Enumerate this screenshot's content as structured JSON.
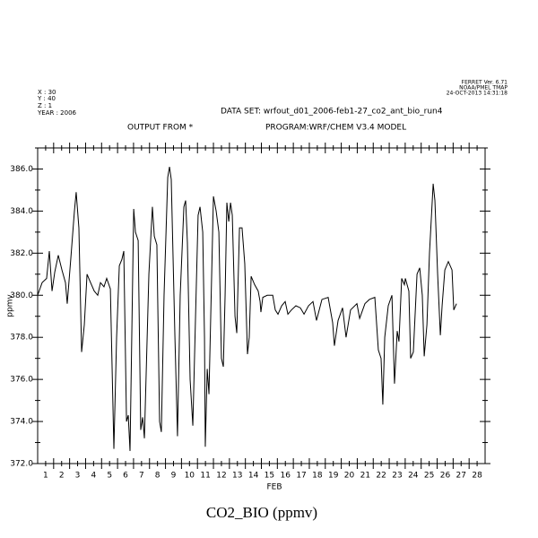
{
  "chart_data": {
    "type": "line",
    "title": "CO2_BIO (ppmv)",
    "software": "FERRET Ver. 6.71",
    "organization": "NOAA/PMEL TMAP",
    "timestamp": "24-OCT-2013 14:31:18",
    "header_left": [
      "X : 30",
      "Y : 40",
      "Z : 1",
      "YEAR : 2006"
    ],
    "dataset": "DATA SET: wrfout_d01_2006-feb1-27_co2_ant_bio_run4",
    "output_from": "OUTPUT FROM *",
    "program": "PROGRAM:WRF/CHEM V3.4 MODEL",
    "x_label": "FEB",
    "y_label": "ppmv",
    "color": "#000000",
    "xlim": [
      1,
      29
    ],
    "ylim": [
      372,
      387
    ],
    "xticks": [
      {
        "value": 1.5,
        "label": "1"
      },
      {
        "value": 2.5,
        "label": "2"
      },
      {
        "value": 3.5,
        "label": "3"
      },
      {
        "value": 4.5,
        "label": "4"
      },
      {
        "value": 5.5,
        "label": "5"
      },
      {
        "value": 6.5,
        "label": "6"
      },
      {
        "value": 7.5,
        "label": "7"
      },
      {
        "value": 8.5,
        "label": "8"
      },
      {
        "value": 9.5,
        "label": "9"
      },
      {
        "value": 10.5,
        "label": "10"
      },
      {
        "value": 11.5,
        "label": "11"
      },
      {
        "value": 12.5,
        "label": "12"
      },
      {
        "value": 13.5,
        "label": "13"
      },
      {
        "value": 14.5,
        "label": "14"
      },
      {
        "value": 15.5,
        "label": "15"
      },
      {
        "value": 16.5,
        "label": "16"
      },
      {
        "value": 17.5,
        "label": "17"
      },
      {
        "value": 18.5,
        "label": "18"
      },
      {
        "value": 19.5,
        "label": "19"
      },
      {
        "value": 20.5,
        "label": "20"
      },
      {
        "value": 21.5,
        "label": "21"
      },
      {
        "value": 22.5,
        "label": "22"
      },
      {
        "value": 23.5,
        "label": "23"
      },
      {
        "value": 24.5,
        "label": "24"
      },
      {
        "value": 25.5,
        "label": "25"
      },
      {
        "value": 26.5,
        "label": "26"
      },
      {
        "value": 27.5,
        "label": "27"
      },
      {
        "value": 28.5,
        "label": "28"
      }
    ],
    "xminorticks": [
      2,
      3,
      4,
      5,
      6,
      7,
      8,
      9,
      10,
      11,
      12,
      13,
      14,
      15,
      16,
      17,
      18,
      19,
      20,
      21,
      22,
      23,
      24,
      25,
      26,
      27,
      28
    ],
    "yticks": [
      {
        "value": 372,
        "label": "372.0"
      },
      {
        "value": 374,
        "label": "374.0"
      },
      {
        "value": 376,
        "label": "376.0"
      },
      {
        "value": 378,
        "label": "378.0"
      },
      {
        "value": 380,
        "label": "380.0"
      },
      {
        "value": 382,
        "label": "382.0"
      },
      {
        "value": 384,
        "label": "384.0"
      },
      {
        "value": 386,
        "label": "386.0"
      }
    ],
    "yminorticks": [
      373,
      375,
      377,
      379,
      381,
      383,
      385,
      387
    ],
    "x": [
      1.0,
      1.28,
      1.56,
      1.73,
      1.9,
      2.07,
      2.29,
      2.52,
      2.74,
      2.85,
      3.08,
      3.3,
      3.41,
      3.58,
      3.75,
      3.92,
      4.09,
      4.31,
      4.54,
      4.76,
      4.93,
      5.15,
      5.32,
      5.55,
      5.77,
      5.94,
      6.11,
      6.27,
      6.39,
      6.56,
      6.67,
      6.78,
      7.01,
      7.12,
      7.29,
      7.45,
      7.57,
      7.68,
      7.96,
      8.18,
      8.3,
      8.46,
      8.63,
      8.74,
      8.91,
      9.14,
      9.25,
      9.36,
      9.59,
      9.75,
      9.92,
      10.15,
      10.26,
      10.37,
      10.54,
      10.71,
      10.88,
      11.04,
      11.16,
      11.33,
      11.44,
      11.49,
      11.61,
      11.72,
      11.83,
      12.0,
      12.17,
      12.34,
      12.5,
      12.62,
      12.73,
      12.84,
      12.96,
      13.07,
      13.18,
      13.35,
      13.46,
      13.63,
      13.79,
      13.96,
      14.13,
      14.24,
      14.36,
      14.58,
      14.8,
      14.92,
      14.97,
      15.09,
      15.37,
      15.71,
      15.87,
      16.04,
      16.27,
      16.49,
      16.66,
      16.88,
      17.16,
      17.44,
      17.67,
      17.95,
      18.23,
      18.45,
      18.79,
      19.18,
      19.46,
      19.57,
      19.8,
      20.08,
      20.3,
      20.58,
      20.98,
      21.15,
      21.48,
      21.76,
      22.1,
      22.32,
      22.49,
      22.6,
      22.72,
      22.94,
      23.17,
      23.33,
      23.5,
      23.61,
      23.78,
      23.95,
      24.01,
      24.23,
      24.34,
      24.51,
      24.74,
      24.91,
      25.07,
      25.19,
      25.36,
      25.52,
      25.75,
      25.86,
      26.03,
      26.2,
      26.31,
      26.48,
      26.7,
      26.93,
      27.04,
      27.21
    ],
    "values": [
      380.0,
      380.6,
      380.8,
      382.1,
      380.2,
      381.1,
      381.9,
      381.2,
      380.6,
      379.6,
      381.8,
      384.0,
      384.9,
      383.2,
      377.3,
      378.6,
      381.0,
      380.6,
      380.2,
      380.0,
      380.6,
      380.4,
      380.8,
      380.3,
      372.7,
      378.0,
      381.4,
      381.7,
      382.1,
      374.0,
      374.3,
      372.6,
      384.1,
      383.0,
      382.6,
      373.6,
      374.2,
      373.2,
      381.0,
      384.2,
      382.8,
      382.4,
      374.0,
      373.5,
      380.0,
      385.6,
      386.1,
      385.5,
      378.0,
      373.3,
      380.0,
      384.2,
      384.5,
      382.5,
      376.0,
      373.8,
      379.0,
      383.8,
      384.2,
      383.0,
      378.0,
      372.8,
      376.5,
      375.3,
      379.0,
      384.7,
      384.0,
      383.0,
      377.0,
      376.6,
      380.0,
      384.4,
      383.5,
      384.4,
      383.8,
      379.0,
      378.2,
      383.2,
      383.2,
      381.5,
      377.2,
      378.0,
      380.9,
      380.5,
      380.2,
      379.7,
      379.2,
      379.9,
      380.0,
      380.0,
      379.3,
      379.1,
      379.5,
      379.7,
      379.1,
      379.3,
      379.5,
      379.4,
      379.1,
      379.5,
      379.7,
      378.8,
      379.8,
      379.9,
      378.7,
      377.6,
      378.8,
      379.4,
      378.0,
      379.3,
      379.6,
      378.9,
      379.6,
      379.8,
      379.9,
      377.4,
      377.0,
      374.8,
      378.0,
      379.5,
      380.0,
      375.8,
      378.3,
      377.8,
      380.8,
      380.5,
      380.8,
      380.2,
      377.0,
      377.3,
      381.0,
      381.3,
      380.0,
      377.1,
      378.6,
      382.0,
      385.3,
      384.5,
      381.0,
      378.1,
      379.5,
      381.2,
      381.6,
      381.2,
      379.3,
      379.6
    ]
  }
}
